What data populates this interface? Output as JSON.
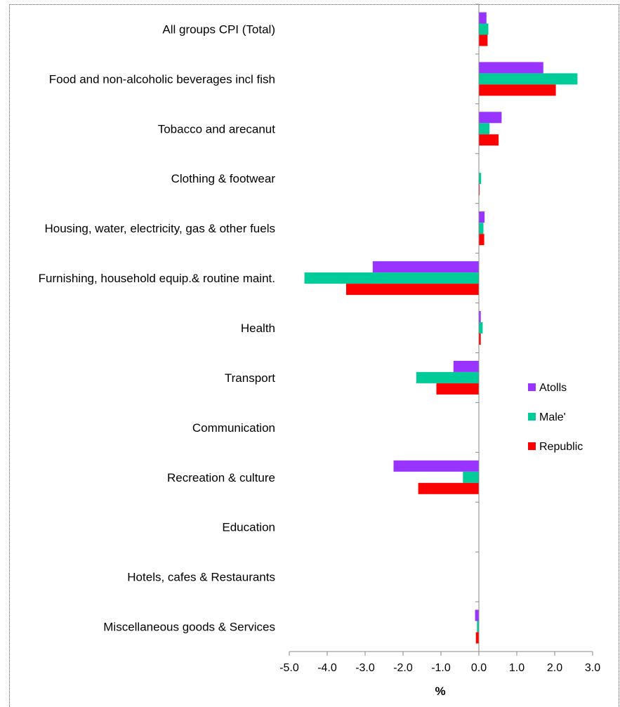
{
  "chart_data": {
    "type": "bar",
    "orientation": "horizontal",
    "categories": [
      "All groups CPI (Total)",
      "Food and non-alcoholic beverages incl fish",
      "Tobacco and arecanut",
      "Clothing & footwear",
      "Housing, water, electricity, gas & other fuels",
      "Furnishing, household equip.& routine maint.",
      "Health",
      "Transport",
      "Communication",
      "Recreation & culture",
      "Education",
      "Hotels, cafes & Restaurants",
      "Miscellaneous goods & Services"
    ],
    "series": [
      {
        "name": "Atolls",
        "color": "#9933ff",
        "values": [
          0.2,
          1.7,
          0.6,
          0.0,
          0.15,
          -2.8,
          0.05,
          -0.67,
          0.0,
          -2.25,
          0.0,
          0.0,
          -0.1
        ]
      },
      {
        "name": "Male'",
        "color": "#00cc99",
        "values": [
          0.25,
          2.6,
          0.28,
          0.06,
          0.12,
          -4.6,
          0.1,
          -1.65,
          0.0,
          -0.42,
          0.0,
          0.0,
          -0.05
        ]
      },
      {
        "name": "Republic",
        "color": "#ff0000",
        "values": [
          0.23,
          2.03,
          0.52,
          0.02,
          0.14,
          -3.5,
          0.05,
          -1.12,
          0.0,
          -1.6,
          0.0,
          0.0,
          -0.08
        ]
      }
    ],
    "xlim": [
      -5.0,
      3.0
    ],
    "xticks": [
      "-5.0",
      "-4.0",
      "-3.0",
      "-2.0",
      "-1.0",
      "0.0",
      "1.0",
      "2.0",
      "3.0"
    ],
    "xlabel": "%",
    "ylabel": "",
    "title": "",
    "legend_position": "right",
    "grid": false
  }
}
